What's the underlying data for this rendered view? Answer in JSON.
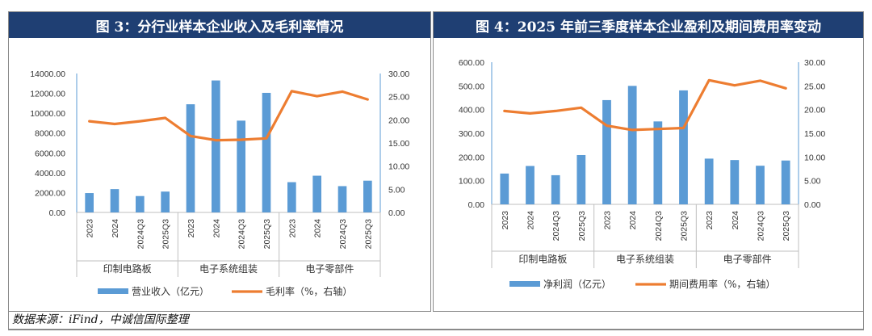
{
  "source_note": "数据来源：iFind，中诚信国际整理",
  "chart_data": [
    {
      "id": "fig3",
      "type": "bar+line",
      "title": "图 3：分行业样本企业收入及毛利率情况",
      "categories": [
        "2023",
        "2024",
        "2024Q3",
        "2025Q3",
        "2023",
        "2024",
        "2024Q3",
        "2025Q3",
        "2023",
        "2024",
        "2024Q3",
        "2025Q3"
      ],
      "groups": [
        {
          "label": "印制电路板",
          "span": 4
        },
        {
          "label": "电子系统组装",
          "span": 4
        },
        {
          "label": "电子零部件",
          "span": 4
        }
      ],
      "series": [
        {
          "name": "营业收入（亿元）",
          "kind": "bar",
          "axis": "left",
          "color": "#5b9bd5",
          "values": [
            1950,
            2350,
            1650,
            2100,
            10900,
            13300,
            9250,
            12050,
            3050,
            3700,
            2650,
            3200
          ]
        },
        {
          "name": "毛利率（%，右轴）",
          "kind": "line",
          "axis": "right",
          "color": "#ed7d31",
          "values": [
            19.7,
            19.1,
            19.7,
            20.4,
            16.5,
            15.6,
            15.7,
            16.0,
            26.2,
            25.1,
            26.1,
            24.4
          ]
        }
      ],
      "left_axis": {
        "min": 0,
        "max": 14000,
        "step": 2000,
        "ticks": [
          "0.00",
          "2000.00",
          "4000.00",
          "6000.00",
          "8000.00",
          "10000.00",
          "12000.00",
          "14000.00"
        ]
      },
      "right_axis": {
        "min": 0,
        "max": 30,
        "step": 5,
        "ticks": [
          "0.00",
          "5.00",
          "10.00",
          "15.00",
          "20.00",
          "25.00",
          "30.00"
        ]
      },
      "legend": [
        "营业收入（亿元）",
        "毛利率（%，右轴）"
      ],
      "legend_position": "bottom"
    },
    {
      "id": "fig4",
      "type": "bar+line",
      "title": "图 4：2025 年前三季度样本企业盈利及期间费用率变动",
      "categories": [
        "2023",
        "2024",
        "2024Q3",
        "2025Q3",
        "2023",
        "2024",
        "2024Q3",
        "2025Q3",
        "2023",
        "2024",
        "2024Q3",
        "2025Q3"
      ],
      "groups": [
        {
          "label": "印制电路板",
          "span": 4
        },
        {
          "label": "电子系统组装",
          "span": 4
        },
        {
          "label": "电子零部件",
          "span": 4
        }
      ],
      "series": [
        {
          "name": "净利润（亿元）",
          "kind": "bar",
          "axis": "left",
          "color": "#5b9bd5",
          "values": [
            130,
            162,
            123,
            208,
            440,
            500,
            350,
            481,
            193,
            187,
            163,
            185
          ]
        },
        {
          "name": "期间费用率（%，右轴）",
          "kind": "line",
          "axis": "right",
          "color": "#ed7d31",
          "values": [
            19.7,
            19.2,
            19.7,
            20.4,
            16.6,
            15.7,
            15.9,
            16.1,
            26.2,
            25.1,
            26.1,
            24.5
          ]
        }
      ],
      "left_axis": {
        "min": 0,
        "max": 600,
        "step": 100,
        "ticks": [
          "0.00",
          "100.00",
          "200.00",
          "300.00",
          "400.00",
          "500.00",
          "600.00"
        ]
      },
      "right_axis": {
        "min": 0,
        "max": 30,
        "step": 5,
        "ticks": [
          "0.00",
          "5.00",
          "10.00",
          "15.00",
          "20.00",
          "25.00",
          "30.00"
        ]
      },
      "legend": [
        "净利润（亿元）",
        "期间费用率（%，右轴）"
      ],
      "legend_position": "bottom"
    }
  ]
}
